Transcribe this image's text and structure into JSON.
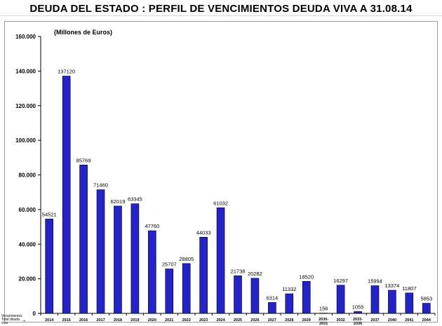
{
  "title": "DEUDA DEL ESTADO : PERFIL DE VENCIMIENTOS DEUDA VIVA A 31.08.14",
  "unit_label": "(Millones de Euros)",
  "legend_note": "Vencimientos Total deuda viva",
  "legend_arrow": "→",
  "chart_data": {
    "type": "bar",
    "title": "DEUDA DEL ESTADO : PERFIL DE VENCIMIENTOS DEUDA VIVA A 31.08.14",
    "ylabel": "(Millones de Euros)",
    "xlabel": "",
    "ylim": [
      0,
      160000
    ],
    "yticks": [
      0,
      20000,
      40000,
      60000,
      80000,
      100000,
      120000,
      140000,
      160000
    ],
    "ytick_labels": [
      "0",
      "20.000",
      "40.000",
      "60.000",
      "80.000",
      "100.000",
      "120.000",
      "140.000",
      "160.000"
    ],
    "categories": [
      "2014",
      "2015",
      "2016",
      "2017",
      "2018",
      "2019",
      "2020",
      "2021",
      "2022",
      "2023",
      "2024",
      "2025",
      "2026",
      "2027",
      "2028",
      "2029",
      "2030-2031",
      "2032",
      "2033-2036",
      "2037",
      "2040",
      "2041",
      "2044"
    ],
    "values": [
      54521,
      137120,
      85769,
      71460,
      62019,
      63345,
      47760,
      25707,
      28805,
      44033,
      61032,
      21738,
      20282,
      6314,
      11332,
      18520,
      156,
      16297,
      1055,
      15994,
      13374,
      11807,
      5853
    ],
    "bar_color": "#2323c8",
    "bar_edge_color": "#000000",
    "grid": false,
    "legend": "none"
  }
}
